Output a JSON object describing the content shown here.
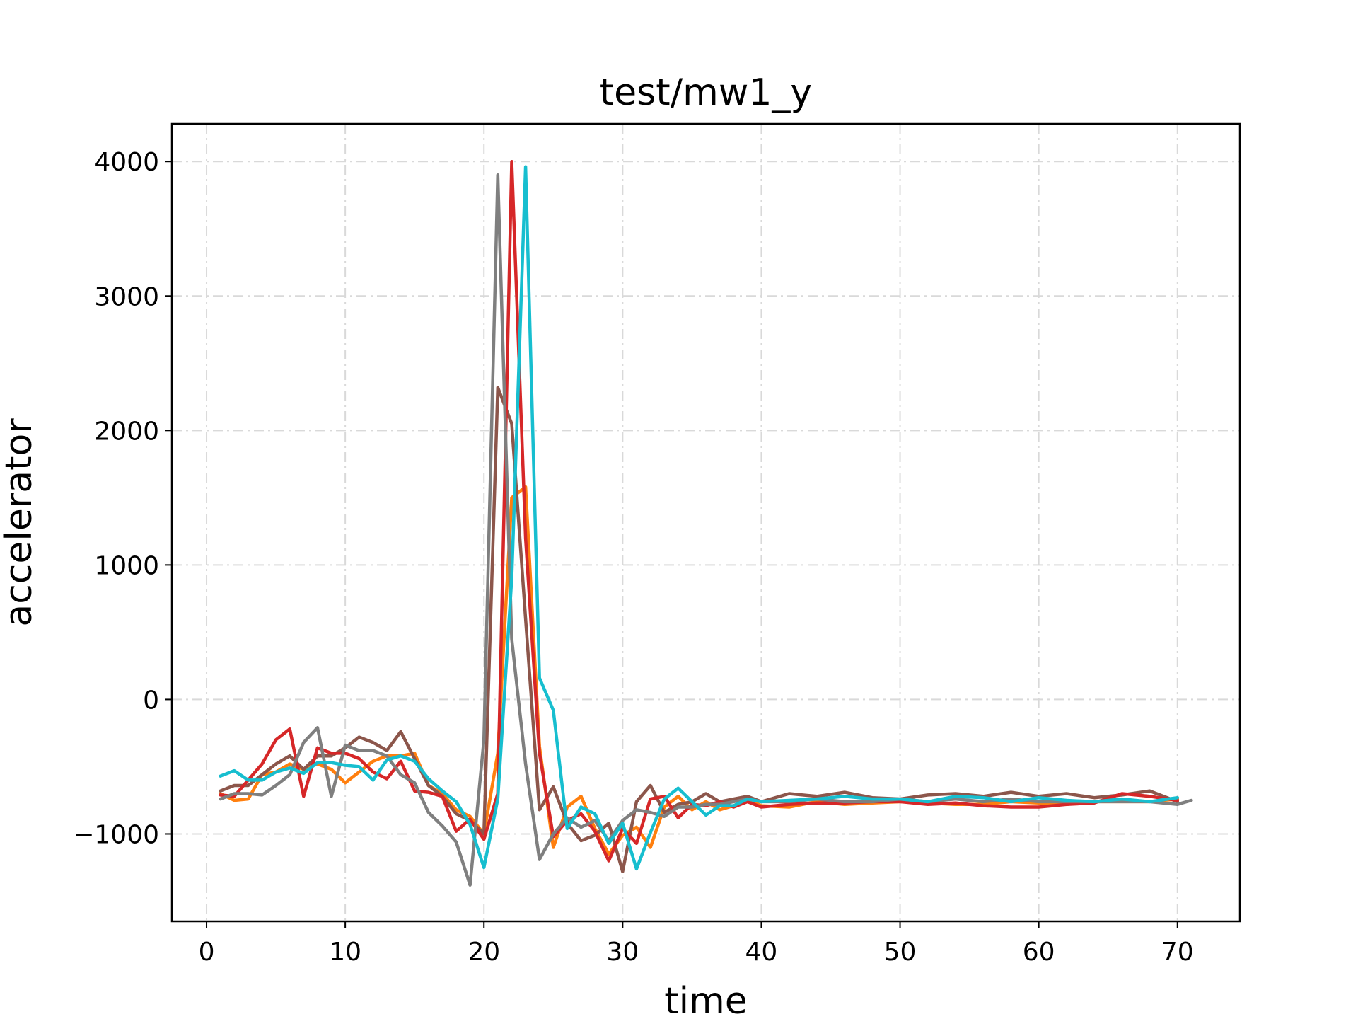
{
  "chart_data": {
    "type": "line",
    "title": "test/mw1_y",
    "xlabel": "time",
    "ylabel": "accelerator",
    "xlim": [
      -2.5,
      74.5
    ],
    "ylim": [
      -1650,
      4280
    ],
    "xticks": [
      0,
      10,
      20,
      30,
      40,
      50,
      60,
      70
    ],
    "yticks": [
      -1000,
      0,
      1000,
      2000,
      3000,
      4000
    ],
    "ytick_labels": [
      "−1000",
      "0",
      "1000",
      "2000",
      "3000",
      "4000"
    ],
    "grid": true,
    "legend": false,
    "series": [
      {
        "color": "#ff7f0e",
        "x": [
          1,
          2,
          3,
          4,
          5,
          6,
          7,
          8,
          9,
          10,
          11,
          12,
          13,
          14,
          15,
          16,
          17,
          18,
          19,
          20,
          21,
          22,
          23,
          24,
          25,
          26,
          27,
          28,
          29,
          30,
          31,
          32,
          33,
          34,
          35,
          36,
          37,
          38,
          39,
          40,
          42,
          44,
          46,
          48,
          50,
          52,
          54,
          56,
          58,
          60,
          62,
          64,
          66,
          68,
          70
        ],
        "y": [
          -700,
          -750,
          -740,
          -560,
          -540,
          -480,
          -520,
          -480,
          -520,
          -620,
          -540,
          -460,
          -420,
          -420,
          -400,
          -640,
          -700,
          -820,
          -870,
          -1000,
          -400,
          1500,
          1580,
          -350,
          -1100,
          -800,
          -720,
          -960,
          -1150,
          -1010,
          -950,
          -1100,
          -800,
          -720,
          -820,
          -760,
          -820,
          -790,
          -740,
          -790,
          -800,
          -760,
          -780,
          -770,
          -760,
          -770,
          -780,
          -780,
          -760,
          -770,
          -780,
          -760,
          -760,
          -760,
          -740
        ]
      },
      {
        "color": "#8c564b",
        "x": [
          1,
          2,
          3,
          4,
          5,
          6,
          7,
          8,
          9,
          10,
          11,
          12,
          13,
          14,
          15,
          16,
          17,
          18,
          19,
          20,
          21,
          22,
          23,
          24,
          25,
          26,
          27,
          28,
          29,
          30,
          31,
          32,
          33,
          34,
          35,
          36,
          37,
          38,
          39,
          40,
          42,
          44,
          46,
          48,
          50,
          52,
          54,
          56,
          58,
          60,
          62,
          64,
          66,
          68,
          70
        ],
        "y": [
          -680,
          -640,
          -640,
          -560,
          -480,
          -420,
          -520,
          -420,
          -420,
          -360,
          -280,
          -320,
          -380,
          -240,
          -440,
          -640,
          -720,
          -850,
          -900,
          -1000,
          2320,
          2050,
          600,
          -820,
          -650,
          -920,
          -1050,
          -1010,
          -920,
          -1280,
          -760,
          -640,
          -840,
          -780,
          -760,
          -700,
          -760,
          -740,
          -720,
          -760,
          -700,
          -720,
          -690,
          -730,
          -740,
          -710,
          -700,
          -720,
          -690,
          -720,
          -700,
          -730,
          -710,
          -680,
          -760
        ]
      },
      {
        "color": "#d62728",
        "x": [
          1,
          2,
          3,
          4,
          5,
          6,
          7,
          8,
          9,
          10,
          11,
          12,
          13,
          14,
          15,
          16,
          17,
          18,
          19,
          20,
          21,
          22,
          23,
          24,
          25,
          26,
          27,
          28,
          29,
          30,
          31,
          32,
          33,
          34,
          35,
          36,
          37,
          38,
          39,
          40,
          42,
          44,
          46,
          48,
          50,
          52,
          54,
          56,
          58,
          60,
          62,
          64,
          66,
          68,
          70
        ],
        "y": [
          -710,
          -720,
          -600,
          -480,
          -300,
          -220,
          -720,
          -360,
          -400,
          -400,
          -440,
          -540,
          -590,
          -460,
          -680,
          -690,
          -720,
          -980,
          -890,
          -1040,
          -700,
          4000,
          1200,
          -400,
          -1020,
          -900,
          -850,
          -980,
          -1200,
          -960,
          -1070,
          -740,
          -720,
          -880,
          -780,
          -790,
          -760,
          -800,
          -760,
          -800,
          -780,
          -770,
          -770,
          -760,
          -760,
          -780,
          -770,
          -790,
          -800,
          -800,
          -780,
          -770,
          -700,
          -720,
          -750
        ]
      },
      {
        "color": "#7f7f7f",
        "x": [
          1,
          2,
          3,
          4,
          5,
          6,
          7,
          8,
          9,
          10,
          11,
          12,
          13,
          14,
          15,
          16,
          17,
          18,
          19,
          20,
          21,
          22,
          23,
          24,
          25,
          26,
          27,
          28,
          29,
          30,
          31,
          32,
          33,
          34,
          35,
          36,
          37,
          38,
          39,
          40,
          42,
          44,
          46,
          48,
          50,
          52,
          54,
          56,
          58,
          60,
          62,
          64,
          66,
          68,
          70,
          71
        ],
        "y": [
          -740,
          -700,
          -700,
          -710,
          -640,
          -560,
          -320,
          -210,
          -720,
          -340,
          -380,
          -380,
          -420,
          -560,
          -620,
          -840,
          -940,
          -1060,
          -1380,
          -300,
          3900,
          450,
          -480,
          -1190,
          -1000,
          -880,
          -950,
          -900,
          -1050,
          -900,
          -820,
          -840,
          -870,
          -800,
          -800,
          -780,
          -780,
          -760,
          -740,
          -760,
          -760,
          -740,
          -760,
          -760,
          -740,
          -760,
          -740,
          -760,
          -740,
          -760,
          -760,
          -760,
          -760,
          -760,
          -780,
          -750
        ]
      },
      {
        "color": "#17becf",
        "x": [
          1,
          2,
          3,
          4,
          5,
          6,
          7,
          8,
          9,
          10,
          11,
          12,
          13,
          14,
          15,
          16,
          17,
          18,
          19,
          20,
          21,
          22,
          23,
          24,
          25,
          26,
          27,
          28,
          29,
          30,
          31,
          32,
          33,
          34,
          35,
          36,
          37,
          38,
          39,
          40,
          42,
          44,
          46,
          48,
          50,
          52,
          54,
          56,
          58,
          60,
          62,
          64,
          66,
          68,
          70
        ],
        "y": [
          -570,
          -530,
          -600,
          -600,
          -540,
          -510,
          -550,
          -470,
          -470,
          -490,
          -500,
          -600,
          -450,
          -420,
          -460,
          -590,
          -680,
          -760,
          -930,
          -1250,
          -740,
          900,
          3960,
          160,
          -80,
          -960,
          -800,
          -850,
          -1070,
          -920,
          -1260,
          -990,
          -740,
          -660,
          -760,
          -860,
          -790,
          -790,
          -740,
          -760,
          -750,
          -740,
          -720,
          -740,
          -740,
          -760,
          -720,
          -730,
          -760,
          -730,
          -750,
          -760,
          -740,
          -760,
          -730
        ]
      }
    ]
  }
}
